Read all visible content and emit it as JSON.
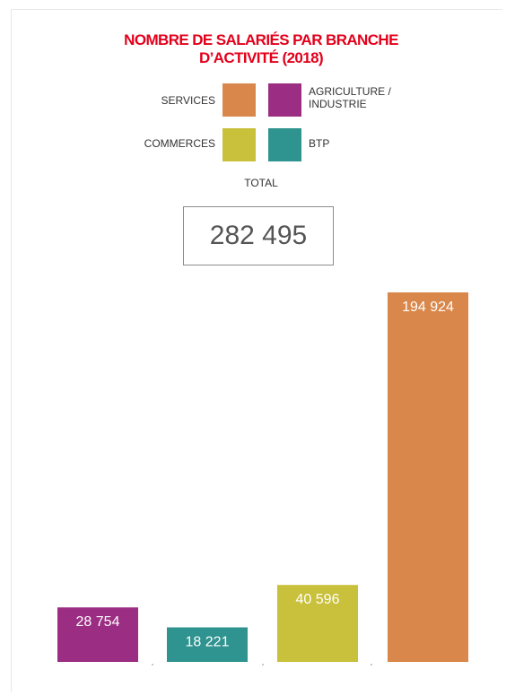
{
  "chart_data": {
    "type": "bar",
    "title": [
      "NOMBRE DE SALARIÉS PAR BRANCHE",
      "D’ACTIVITÉ (2018)"
    ],
    "categories": [
      "AGRICULTURE / INDUSTRIE",
      "BTP",
      "COMMERCES",
      "SERVICES"
    ],
    "values": [
      28754,
      18221,
      40596,
      194924
    ],
    "value_labels": [
      "28 754",
      "18 221",
      "40 596",
      "194 924"
    ],
    "colors": [
      "#9b2d82",
      "#2f938f",
      "#c9c03b",
      "#d9874a"
    ],
    "ylim": [
      0,
      194924
    ],
    "xlabel": "",
    "ylabel": "",
    "grid": false,
    "legend_placement": "top"
  },
  "legend": {
    "items": [
      {
        "label_lines": [
          "SERVICES"
        ],
        "color": "#d9874a"
      },
      {
        "label_lines": [
          "AGRICULTURE /",
          "INDUSTRIE"
        ],
        "color": "#9b2d82"
      },
      {
        "label_lines": [
          "COMMERCES"
        ],
        "color": "#c9c03b"
      },
      {
        "label_lines": [
          "BTP"
        ],
        "color": "#2f938f"
      }
    ]
  },
  "total": {
    "label": "TOTAL",
    "value": "282 495"
  }
}
